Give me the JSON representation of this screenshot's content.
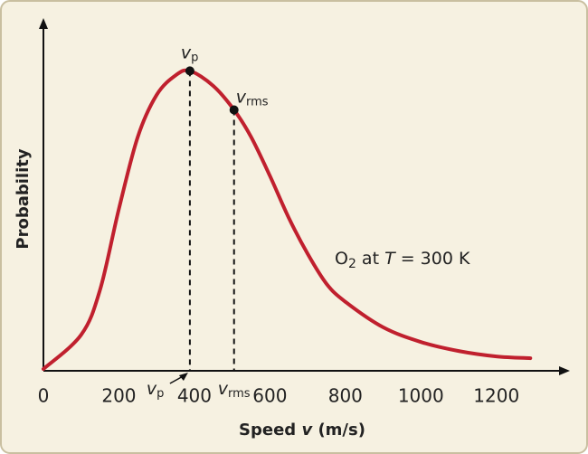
{
  "chart_data": {
    "type": "line",
    "y_label": "Probability",
    "x_label_parts": [
      "Speed ",
      "v",
      " (m/s)"
    ],
    "annotation_parts": [
      "O",
      "2",
      " at ",
      "T",
      " = 300 K"
    ],
    "x": [
      0,
      100,
      150,
      200,
      250,
      300,
      350,
      388,
      450,
      505,
      550,
      600,
      650,
      700,
      750,
      800,
      900,
      1000,
      1100,
      1200,
      1290
    ],
    "series": [
      {
        "color": "#c0202e",
        "values": [
          0.006,
          0.12,
          0.27,
          0.54,
          0.78,
          0.92,
          0.985,
          1.0,
          0.95,
          0.87,
          0.78,
          0.65,
          0.51,
          0.39,
          0.29,
          0.23,
          0.145,
          0.096,
          0.066,
          0.048,
          0.042
        ]
      }
    ],
    "markers": [
      {
        "symbol": "v",
        "sub": "p",
        "x": 388,
        "y": 1.0
      },
      {
        "symbol": "v",
        "sub": "rms",
        "x": 505,
        "y": 0.87
      }
    ],
    "xlim": [
      0,
      1390
    ],
    "ylim": [
      0,
      1.17
    ],
    "xticks": [
      0,
      200,
      400,
      600,
      800,
      1000,
      1200
    ]
  }
}
